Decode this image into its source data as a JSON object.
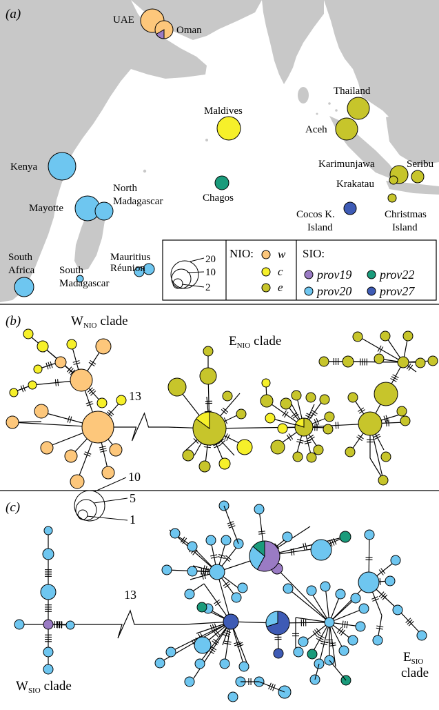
{
  "panels": {
    "a": {
      "tag": "(a)"
    },
    "b": {
      "tag": "(b)",
      "west_clade": "W",
      "west_sub": "NIO",
      "east_clade": "E",
      "east_sub": "NIO",
      "clade_word": "clade",
      "break_steps": "13"
    },
    "c": {
      "tag": "(c)",
      "west_clade": "W",
      "west_sub": "SIO",
      "east_clade": "E",
      "east_sub": "SIO",
      "clade_word": "clade",
      "break_steps": "13"
    }
  },
  "locations": {
    "uae": "UAE",
    "oman": "Oman",
    "maldives": "Maldives",
    "thailand": "Thailand",
    "aceh": "Aceh",
    "kenya": "Kenya",
    "north_mad_1": "North",
    "north_mad_2": "Madagascar",
    "mayotte": "Mayotte",
    "chagos": "Chagos",
    "karimunjawa": "Karimunjawa",
    "seribu": "Seribu",
    "krakatau": "Krakatau",
    "cocos_1": "Cocos K.",
    "cocos_2": "Island",
    "christmas_1": "Christmas",
    "christmas_2": "Island",
    "mauritius": "Mauritius",
    "reunion": "Réunion",
    "south_africa_1": "South",
    "south_africa_2": "Africa",
    "south_mad_1": "South",
    "south_mad_2": "Madagascar"
  },
  "size_legend_map": [
    "20",
    "10",
    "2"
  ],
  "size_legend_network": [
    "10",
    "5",
    "1"
  ],
  "legend": {
    "nio_title": "NIO:",
    "nio": [
      {
        "label": "w",
        "color": "#fdc77b"
      },
      {
        "label": "c",
        "color": "#f6f02a"
      },
      {
        "label": "e",
        "color": "#c7c52b"
      }
    ],
    "sio_title": "SIO:",
    "sio": [
      {
        "label": "prov19",
        "color": "#9a7bc4"
      },
      {
        "label": "prov22",
        "color": "#1a9b7b"
      },
      {
        "label": "prov20",
        "color": "#6ec6f0"
      },
      {
        "label": "prov27",
        "color": "#3e5bb5"
      }
    ]
  },
  "colors": {
    "land": "#c8c8c8",
    "sea": "#ffffff",
    "w": "#fdc77b",
    "c": "#f6f02a",
    "e": "#c7c52b",
    "prov19": "#9a7bc4",
    "prov20": "#6ec6f0",
    "prov22": "#1a9b7b",
    "prov27": "#3e5bb5"
  }
}
